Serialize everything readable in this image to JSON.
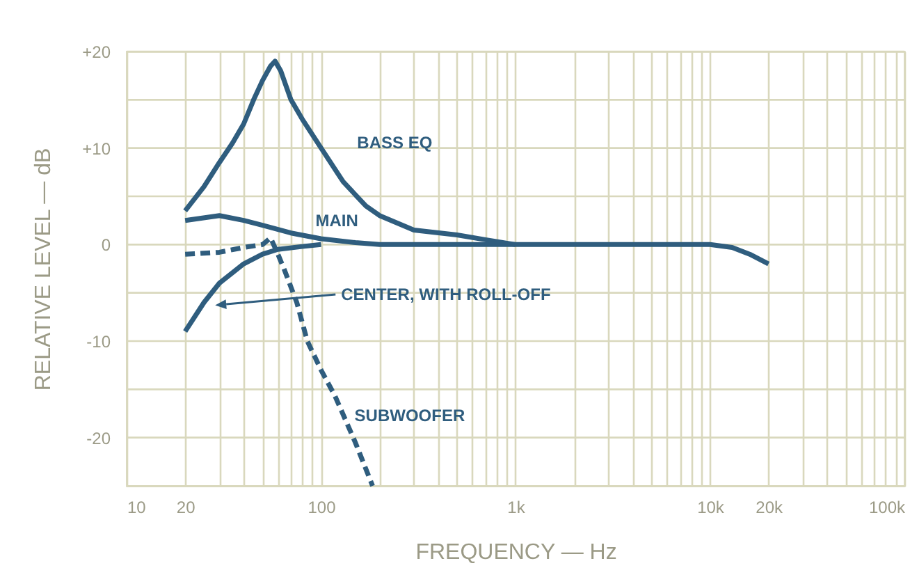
{
  "chart_data": {
    "type": "line",
    "xlabel": "FREQUENCY — Hz",
    "ylabel": "RELATIVE LEVEL — dB",
    "log": "x",
    "grid": true,
    "marker": "none",
    "xlim": [
      10,
      100000
    ],
    "xticks": [
      10,
      20,
      {
        "value": 30,
        "label": null
      },
      {
        "value": 40,
        "label": null
      },
      {
        "value": 50,
        "label": null
      },
      {
        "value": 60,
        "label": null
      },
      {
        "value": 70,
        "label": null
      },
      {
        "value": 80,
        "label": null
      },
      {
        "value": 90,
        "label": null
      },
      100,
      {
        "value": 200,
        "label": null
      },
      {
        "value": 300,
        "label": null
      },
      {
        "value": 400,
        "label": null
      },
      {
        "value": 500,
        "label": null
      },
      {
        "value": 600,
        "label": null
      },
      {
        "value": 700,
        "label": null
      },
      {
        "value": 800,
        "label": null
      },
      {
        "value": 900,
        "label": null
      },
      {
        "value": 1000,
        "label": "1k"
      },
      {
        "value": 2000,
        "label": null
      },
      {
        "value": 3000,
        "label": null
      },
      {
        "value": 4000,
        "label": null
      },
      {
        "value": 5000,
        "label": null
      },
      {
        "value": 6000,
        "label": null
      },
      {
        "value": 7000,
        "label": null
      },
      {
        "value": 8000,
        "label": null
      },
      {
        "value": 9000,
        "label": null
      },
      {
        "value": 10000,
        "label": "10k"
      },
      {
        "value": 20000,
        "label": "20k"
      },
      {
        "value": 30000,
        "label": null
      },
      {
        "value": 40000,
        "label": null
      },
      {
        "value": 50000,
        "label": null
      },
      {
        "value": 60000,
        "label": null
      },
      {
        "value": 70000,
        "label": null
      },
      {
        "value": 80000,
        "label": null
      },
      {
        "value": 90000,
        "label": null
      },
      {
        "value": 100000,
        "label": "100k"
      }
    ],
    "ylim": [
      -25,
      20
    ],
    "yticks": [
      {
        "value": -20,
        "label": "-20"
      },
      {
        "value": -15,
        "label": null
      },
      {
        "value": -10,
        "label": "-10"
      },
      {
        "value": -5,
        "label": null
      },
      0,
      {
        "value": 5,
        "label": null
      },
      {
        "value": 10,
        "label": "+10"
      },
      {
        "value": 15,
        "label": null
      },
      {
        "value": 20,
        "label": "+20"
      }
    ],
    "series": [
      {
        "name": "BASS EQ",
        "color": "#2f5d7e",
        "line_style": "solid",
        "x": [
          20,
          25,
          30,
          35,
          40,
          45,
          50,
          55,
          58,
          62,
          70,
          80,
          100,
          130,
          170,
          200,
          300,
          500,
          700,
          1000
        ],
        "values": [
          3.5,
          6,
          8.5,
          10.5,
          12.5,
          15,
          17,
          18.5,
          19,
          18,
          15,
          13,
          10,
          6.5,
          4,
          3,
          1.5,
          1,
          0.5,
          0
        ]
      },
      {
        "name": "MAIN",
        "color": "#2f5d7e",
        "line_style": "solid",
        "x": [
          20,
          30,
          40,
          50,
          70,
          100,
          150,
          200,
          1000,
          5000,
          10000,
          13000,
          16000,
          20000
        ],
        "values": [
          2.5,
          3,
          2.5,
          2,
          1.2,
          0.6,
          0.2,
          0,
          0,
          0,
          0,
          -0.3,
          -1,
          -2
        ]
      },
      {
        "name": "CENTER, WITH ROLL-OFF",
        "color": "#2f5d7e",
        "line_style": "solid",
        "x": [
          20,
          25,
          30,
          40,
          50,
          60,
          80,
          100
        ],
        "values": [
          -9,
          -6,
          -4,
          -2,
          -1,
          -0.5,
          -0.2,
          0
        ]
      },
      {
        "name": "SUBWOOFER",
        "color": "#2f5d7e",
        "line_style": "dashed",
        "x": [
          20,
          30,
          40,
          50,
          55,
          60,
          65,
          75,
          85,
          100,
          118,
          150,
          184
        ],
        "values": [
          -1,
          -0.8,
          -0.3,
          0,
          0.7,
          -1,
          -2.7,
          -6,
          -10,
          -13,
          -15.7,
          -20.5,
          -25
        ]
      }
    ]
  }
}
